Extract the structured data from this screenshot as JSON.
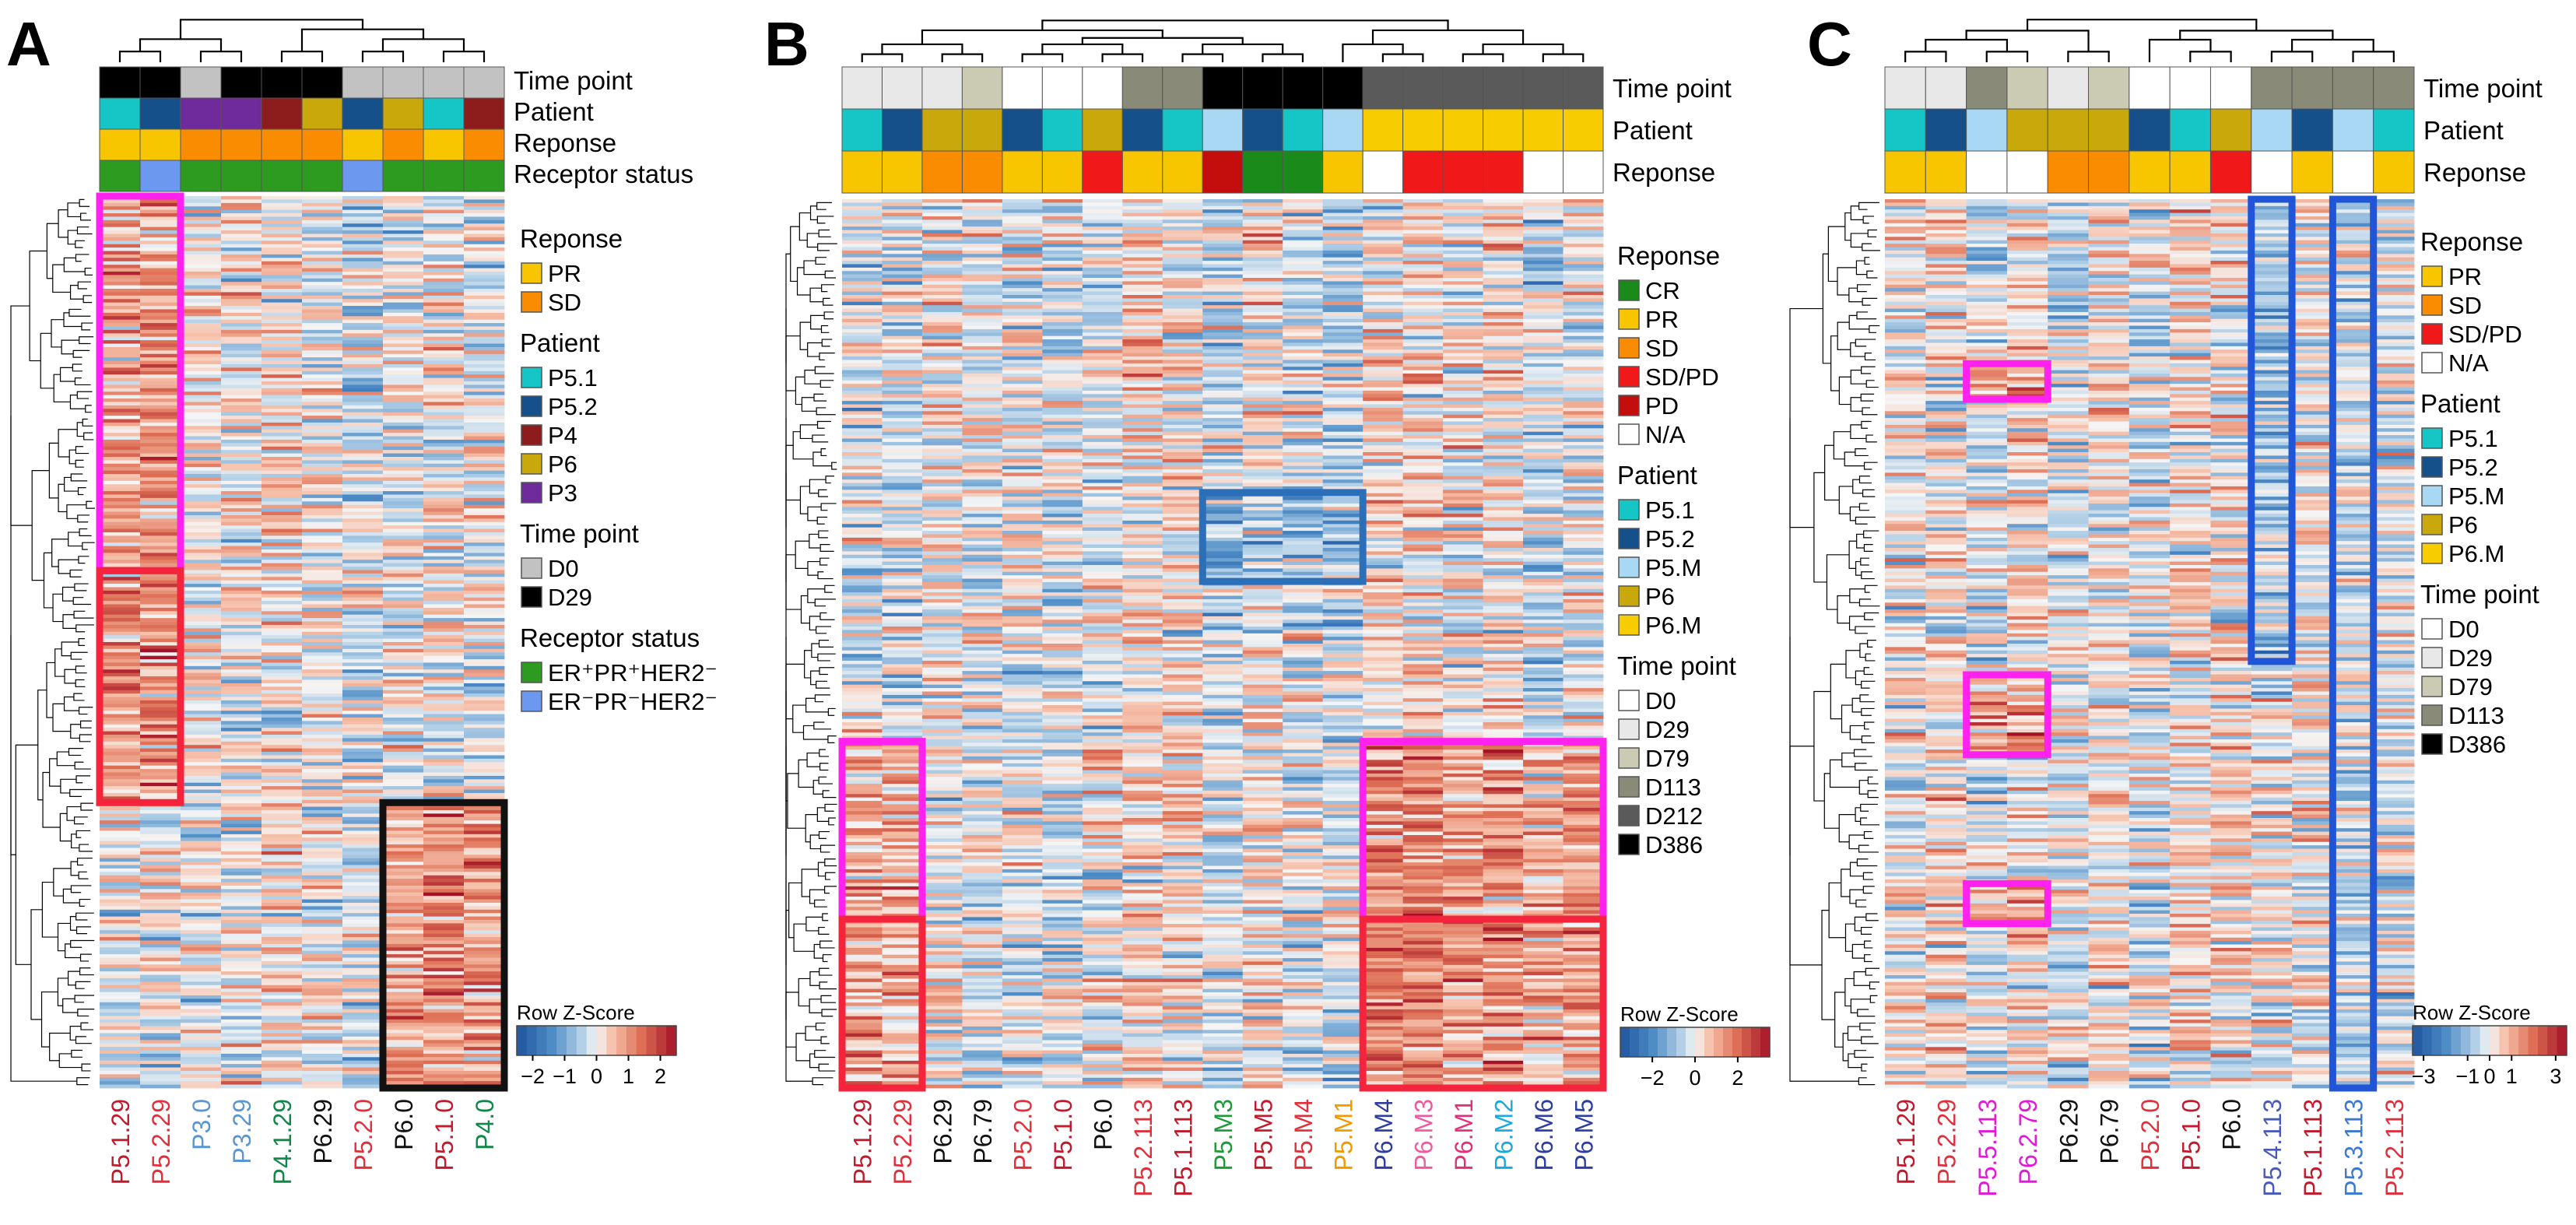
{
  "figure": {
    "type": "heatmap",
    "colors": {
      "CR": "#1a8a1a",
      "PR": "#f7c600",
      "SD": "#f98c00",
      "SD_PD": "#f01818",
      "PD": "#c40d0d",
      "NA": "#ffffff",
      "P5_1": "#16c6c6",
      "P5_2": "#15508a",
      "P5_M": "#a9d8f5",
      "P4": "#8d1d1d",
      "P6": "#c8a80a",
      "P6_M": "#f7cc00",
      "P3": "#6f2b9b",
      "D0": "#ffffff",
      "D29": "#e8e8e8",
      "D79": "#cbcbb3",
      "D113": "#8a8a78",
      "D212": "#5a5a5a",
      "D386": "#000000",
      "D0_A": "#c2c2c2",
      "D29_A": "#000000",
      "ER_pos": "#2d9a20",
      "ER_neg": "#6c99ef",
      "magenta_box": "#ff22ee",
      "red_box": "#f4243d",
      "blue_box": "#2b6fb8",
      "blue_box_c": "#2155d8",
      "black_box": "#111111"
    }
  },
  "chart_data": [
    {
      "panel": "A",
      "type": "heatmap",
      "annotation_rows": [
        "Time point",
        "Patient",
        "Reponse",
        "Receptor status"
      ],
      "columns": [
        {
          "label": "P5.1.29",
          "color": "#c01a2c",
          "time": "D29_A",
          "patient": "P5_1",
          "response": "PR",
          "receptor": "ER_pos"
        },
        {
          "label": "P5.2.29",
          "color": "#e0303c",
          "time": "D29_A",
          "patient": "P5_2",
          "response": "PR",
          "receptor": "ER_neg"
        },
        {
          "label": "P3.0",
          "color": "#5a96d2",
          "time": "D0_A",
          "patient": "P3",
          "response": "SD",
          "receptor": "ER_pos"
        },
        {
          "label": "P3.29",
          "color": "#5a96d2",
          "time": "D29_A",
          "patient": "P3",
          "response": "SD",
          "receptor": "ER_pos"
        },
        {
          "label": "P4.1.29",
          "color": "#12874a",
          "time": "D29_A",
          "patient": "P4",
          "response": "SD",
          "receptor": "ER_pos"
        },
        {
          "label": "P6.29",
          "color": "#111111",
          "time": "D29_A",
          "patient": "P6",
          "response": "SD",
          "receptor": "ER_pos"
        },
        {
          "label": "P5.2.0",
          "color": "#e0303c",
          "time": "D0_A",
          "patient": "P5_2",
          "response": "PR",
          "receptor": "ER_neg"
        },
        {
          "label": "P6.0",
          "color": "#111111",
          "time": "D0_A",
          "patient": "P6",
          "response": "SD",
          "receptor": "ER_pos"
        },
        {
          "label": "P5.1.0",
          "color": "#c01a2c",
          "time": "D0_A",
          "patient": "P5_1",
          "response": "PR",
          "receptor": "ER_pos"
        },
        {
          "label": "P4.0",
          "color": "#12874a",
          "time": "D0_A",
          "patient": "P4",
          "response": "SD",
          "receptor": "ER_pos"
        }
      ],
      "highlight_boxes": [
        {
          "color": "magenta_box",
          "col_start": 0,
          "col_end": 1,
          "row_start": 0.0,
          "row_end": 0.42
        },
        {
          "color": "red_box",
          "col_start": 0,
          "col_end": 1,
          "row_start": 0.42,
          "row_end": 0.68
        },
        {
          "color": "black_box",
          "col_start": 7,
          "col_end": 9,
          "row_start": 0.68,
          "row_end": 1.0
        }
      ],
      "legend": {
        "sections": [
          {
            "title": "Reponse",
            "items": [
              {
                "label": "PR",
                "color": "PR"
              },
              {
                "label": "SD",
                "color": "SD"
              }
            ]
          },
          {
            "title": "Patient",
            "items": [
              {
                "label": "P5.1",
                "color": "P5_1"
              },
              {
                "label": "P5.2",
                "color": "P5_2"
              },
              {
                "label": "P4",
                "color": "P4"
              },
              {
                "label": "P6",
                "color": "P6"
              },
              {
                "label": "P3",
                "color": "P3"
              }
            ]
          },
          {
            "title": "Time point",
            "items": [
              {
                "label": "D0",
                "color": "D0_A"
              },
              {
                "label": "D29",
                "color": "D29_A"
              }
            ]
          },
          {
            "title": "Receptor status",
            "items": [
              {
                "label": "ER⁺PR⁺HER2⁻",
                "color": "ER_pos"
              },
              {
                "label": "ER⁻PR⁻HER2⁻",
                "color": "ER_neg"
              }
            ]
          }
        ]
      },
      "colorkey": {
        "title": "Row Z-Score",
        "range": [
          -2.5,
          2.5
        ],
        "ticks": [
          -2,
          -1,
          0,
          1,
          2
        ],
        "tick_labels": [
          "−2",
          "−1",
          "0",
          "1",
          "2"
        ]
      }
    },
    {
      "panel": "B",
      "type": "heatmap",
      "annotation_rows": [
        "Time point",
        "Patient",
        "Reponse"
      ],
      "columns": [
        {
          "label": "P5.1.29",
          "color": "#c01a2c",
          "time": "D29",
          "patient": "P5_1",
          "response": "PR"
        },
        {
          "label": "P5.2.29",
          "color": "#e0303c",
          "time": "D29",
          "patient": "P5_2",
          "response": "PR"
        },
        {
          "label": "P6.29",
          "color": "#111111",
          "time": "D29",
          "patient": "P6",
          "response": "SD"
        },
        {
          "label": "P6.79",
          "color": "#111111",
          "time": "D79",
          "patient": "P6",
          "response": "SD"
        },
        {
          "label": "P5.2.0",
          "color": "#e0303c",
          "time": "D0",
          "patient": "P5_2",
          "response": "PR"
        },
        {
          "label": "P5.1.0",
          "color": "#c01a2c",
          "time": "D0",
          "patient": "P5_1",
          "response": "PR"
        },
        {
          "label": "P6.0",
          "color": "#111111",
          "time": "D0",
          "patient": "P6",
          "response": "SD_PD"
        },
        {
          "label": "P5.2.113",
          "color": "#e0303c",
          "time": "D113",
          "patient": "P5_2",
          "response": "PR"
        },
        {
          "label": "P5.1.113",
          "color": "#c01a2c",
          "time": "D113",
          "patient": "P5_1",
          "response": "PR"
        },
        {
          "label": "P5.M3",
          "color": "#1f9a3a",
          "time": "D386",
          "patient": "P5_M",
          "response": "PD"
        },
        {
          "label": "P5.M5",
          "color": "#c01a2c",
          "time": "D386",
          "patient": "P5_2",
          "response": "CR"
        },
        {
          "label": "P5.M4",
          "color": "#e0303c",
          "time": "D386",
          "patient": "P5_1",
          "response": "CR"
        },
        {
          "label": "P5.M1",
          "color": "#f09a00",
          "time": "D386",
          "patient": "P5_M",
          "response": "PR"
        },
        {
          "label": "P6.M4",
          "color": "#2d3ea0",
          "time": "D212",
          "patient": "P6_M",
          "response": "NA"
        },
        {
          "label": "P6.M3",
          "color": "#ee5aa0",
          "time": "D212",
          "patient": "P6_M",
          "response": "SD_PD"
        },
        {
          "label": "P6.M1",
          "color": "#e0307a",
          "time": "D212",
          "patient": "P6_M",
          "response": "SD_PD"
        },
        {
          "label": "P6.M2",
          "color": "#1aa8e0",
          "time": "D212",
          "patient": "P6_M",
          "response": "SD_PD"
        },
        {
          "label": "P6.M6",
          "color": "#2d3ea0",
          "time": "D212",
          "patient": "P6_M",
          "response": "NA"
        },
        {
          "label": "P6.M5",
          "color": "#2d3ea0",
          "time": "D212",
          "patient": "P6_M",
          "response": "NA"
        }
      ],
      "highlight_boxes": [
        {
          "color": "magenta_box",
          "col_start": 0,
          "col_end": 1,
          "row_start": 0.61,
          "row_end": 0.81
        },
        {
          "color": "red_box",
          "col_start": 0,
          "col_end": 1,
          "row_start": 0.81,
          "row_end": 1.0
        },
        {
          "color": "blue_box",
          "col_start": 9,
          "col_end": 12,
          "row_start": 0.33,
          "row_end": 0.43
        },
        {
          "color": "magenta_box",
          "col_start": 13,
          "col_end": 18,
          "row_start": 0.61,
          "row_end": 0.81
        },
        {
          "color": "red_box",
          "col_start": 13,
          "col_end": 18,
          "row_start": 0.81,
          "row_end": 1.0
        }
      ],
      "legend": {
        "sections": [
          {
            "title": "Reponse",
            "items": [
              {
                "label": "CR",
                "color": "CR"
              },
              {
                "label": "PR",
                "color": "PR"
              },
              {
                "label": "SD",
                "color": "SD"
              },
              {
                "label": "SD/PD",
                "color": "SD_PD"
              },
              {
                "label": "PD",
                "color": "PD"
              },
              {
                "label": "N/A",
                "color": "NA"
              }
            ]
          },
          {
            "title": "Patient",
            "items": [
              {
                "label": "P5.1",
                "color": "P5_1"
              },
              {
                "label": "P5.2",
                "color": "P5_2"
              },
              {
                "label": "P5.M",
                "color": "P5_M"
              },
              {
                "label": "P6",
                "color": "P6"
              },
              {
                "label": "P6.M",
                "color": "P6_M"
              }
            ]
          },
          {
            "title": "Time point",
            "items": [
              {
                "label": "D0",
                "color": "D0"
              },
              {
                "label": "D29",
                "color": "D29"
              },
              {
                "label": "D79",
                "color": "D79"
              },
              {
                "label": "D113",
                "color": "D113"
              },
              {
                "label": "D212",
                "color": "D212"
              },
              {
                "label": "D386",
                "color": "D386"
              }
            ]
          }
        ]
      },
      "colorkey": {
        "title": "Row Z-Score",
        "range": [
          -3.5,
          3.5
        ],
        "ticks": [
          -2,
          0,
          2
        ],
        "tick_labels": [
          "−2",
          "0",
          "2"
        ]
      }
    },
    {
      "panel": "C",
      "type": "heatmap",
      "annotation_rows": [
        "Time point",
        "Patient",
        "Reponse"
      ],
      "columns": [
        {
          "label": "P5.1.29",
          "color": "#c01a2c",
          "time": "D29",
          "patient": "P5_1",
          "response": "PR"
        },
        {
          "label": "P5.2.29",
          "color": "#e0303c",
          "time": "D29",
          "patient": "P5_2",
          "response": "PR"
        },
        {
          "label": "P5.5.113",
          "color": "#e21ad8",
          "time": "D113",
          "patient": "P5_M",
          "response": "NA"
        },
        {
          "label": "P6.2.79",
          "color": "#e21ad8",
          "time": "D79",
          "patient": "P6",
          "response": "NA"
        },
        {
          "label": "P6.29",
          "color": "#111111",
          "time": "D29",
          "patient": "P6",
          "response": "SD"
        },
        {
          "label": "P6.79",
          "color": "#111111",
          "time": "D79",
          "patient": "P6",
          "response": "SD"
        },
        {
          "label": "P5.2.0",
          "color": "#e0303c",
          "time": "D0",
          "patient": "P5_2",
          "response": "PR"
        },
        {
          "label": "P5.1.0",
          "color": "#c01a2c",
          "time": "D0",
          "patient": "P5_1",
          "response": "PR"
        },
        {
          "label": "P6.0",
          "color": "#111111",
          "time": "D0",
          "patient": "P6",
          "response": "SD_PD"
        },
        {
          "label": "P5.4.113",
          "color": "#4a5ab8",
          "time": "D113",
          "patient": "P5_M",
          "response": "NA"
        },
        {
          "label": "P5.1.113",
          "color": "#c01a2c",
          "time": "D113",
          "patient": "P5_2",
          "response": "PR"
        },
        {
          "label": "P5.3.113",
          "color": "#3a7ad0",
          "time": "D113",
          "patient": "P5_M",
          "response": "NA"
        },
        {
          "label": "P5.2.113",
          "color": "#e0303c",
          "time": "D113",
          "patient": "P5_1",
          "response": "PR"
        }
      ],
      "highlight_boxes": [
        {
          "color": "magenta_box",
          "col_start": 2,
          "col_end": 3,
          "row_start": 0.185,
          "row_end": 0.225
        },
        {
          "color": "magenta_box",
          "col_start": 2,
          "col_end": 3,
          "row_start": 0.535,
          "row_end": 0.625
        },
        {
          "color": "magenta_box",
          "col_start": 2,
          "col_end": 3,
          "row_start": 0.77,
          "row_end": 0.815
        },
        {
          "color": "blue_box_c",
          "col_start": 9,
          "col_end": 9,
          "row_start": 0.0,
          "row_end": 0.52
        },
        {
          "color": "blue_box_c",
          "col_start": 11,
          "col_end": 11,
          "row_start": 0.0,
          "row_end": 1.0
        }
      ],
      "legend": {
        "sections": [
          {
            "title": "Reponse",
            "items": [
              {
                "label": "PR",
                "color": "PR"
              },
              {
                "label": "SD",
                "color": "SD"
              },
              {
                "label": "SD/PD",
                "color": "SD_PD"
              },
              {
                "label": "N/A",
                "color": "NA"
              }
            ]
          },
          {
            "title": "Patient",
            "items": [
              {
                "label": "P5.1",
                "color": "P5_1"
              },
              {
                "label": "P5.2",
                "color": "P5_2"
              },
              {
                "label": "P5.M",
                "color": "P5_M"
              },
              {
                "label": "P6",
                "color": "P6"
              },
              {
                "label": "P6.M",
                "color": "P6_M"
              }
            ]
          },
          {
            "title": "Time point",
            "items": [
              {
                "label": "D0",
                "color": "D0"
              },
              {
                "label": "D29",
                "color": "D29"
              },
              {
                "label": "D79",
                "color": "D79"
              },
              {
                "label": "D113",
                "color": "D113"
              },
              {
                "label": "D386",
                "color": "D386"
              }
            ]
          }
        ]
      },
      "colorkey": {
        "title": "Row Z-Score",
        "range": [
          -3.5,
          3.5
        ],
        "ticks": [
          -3,
          -1,
          0,
          1,
          3
        ],
        "tick_labels": [
          "−3",
          "−1",
          "0",
          "1",
          "3"
        ]
      }
    }
  ]
}
